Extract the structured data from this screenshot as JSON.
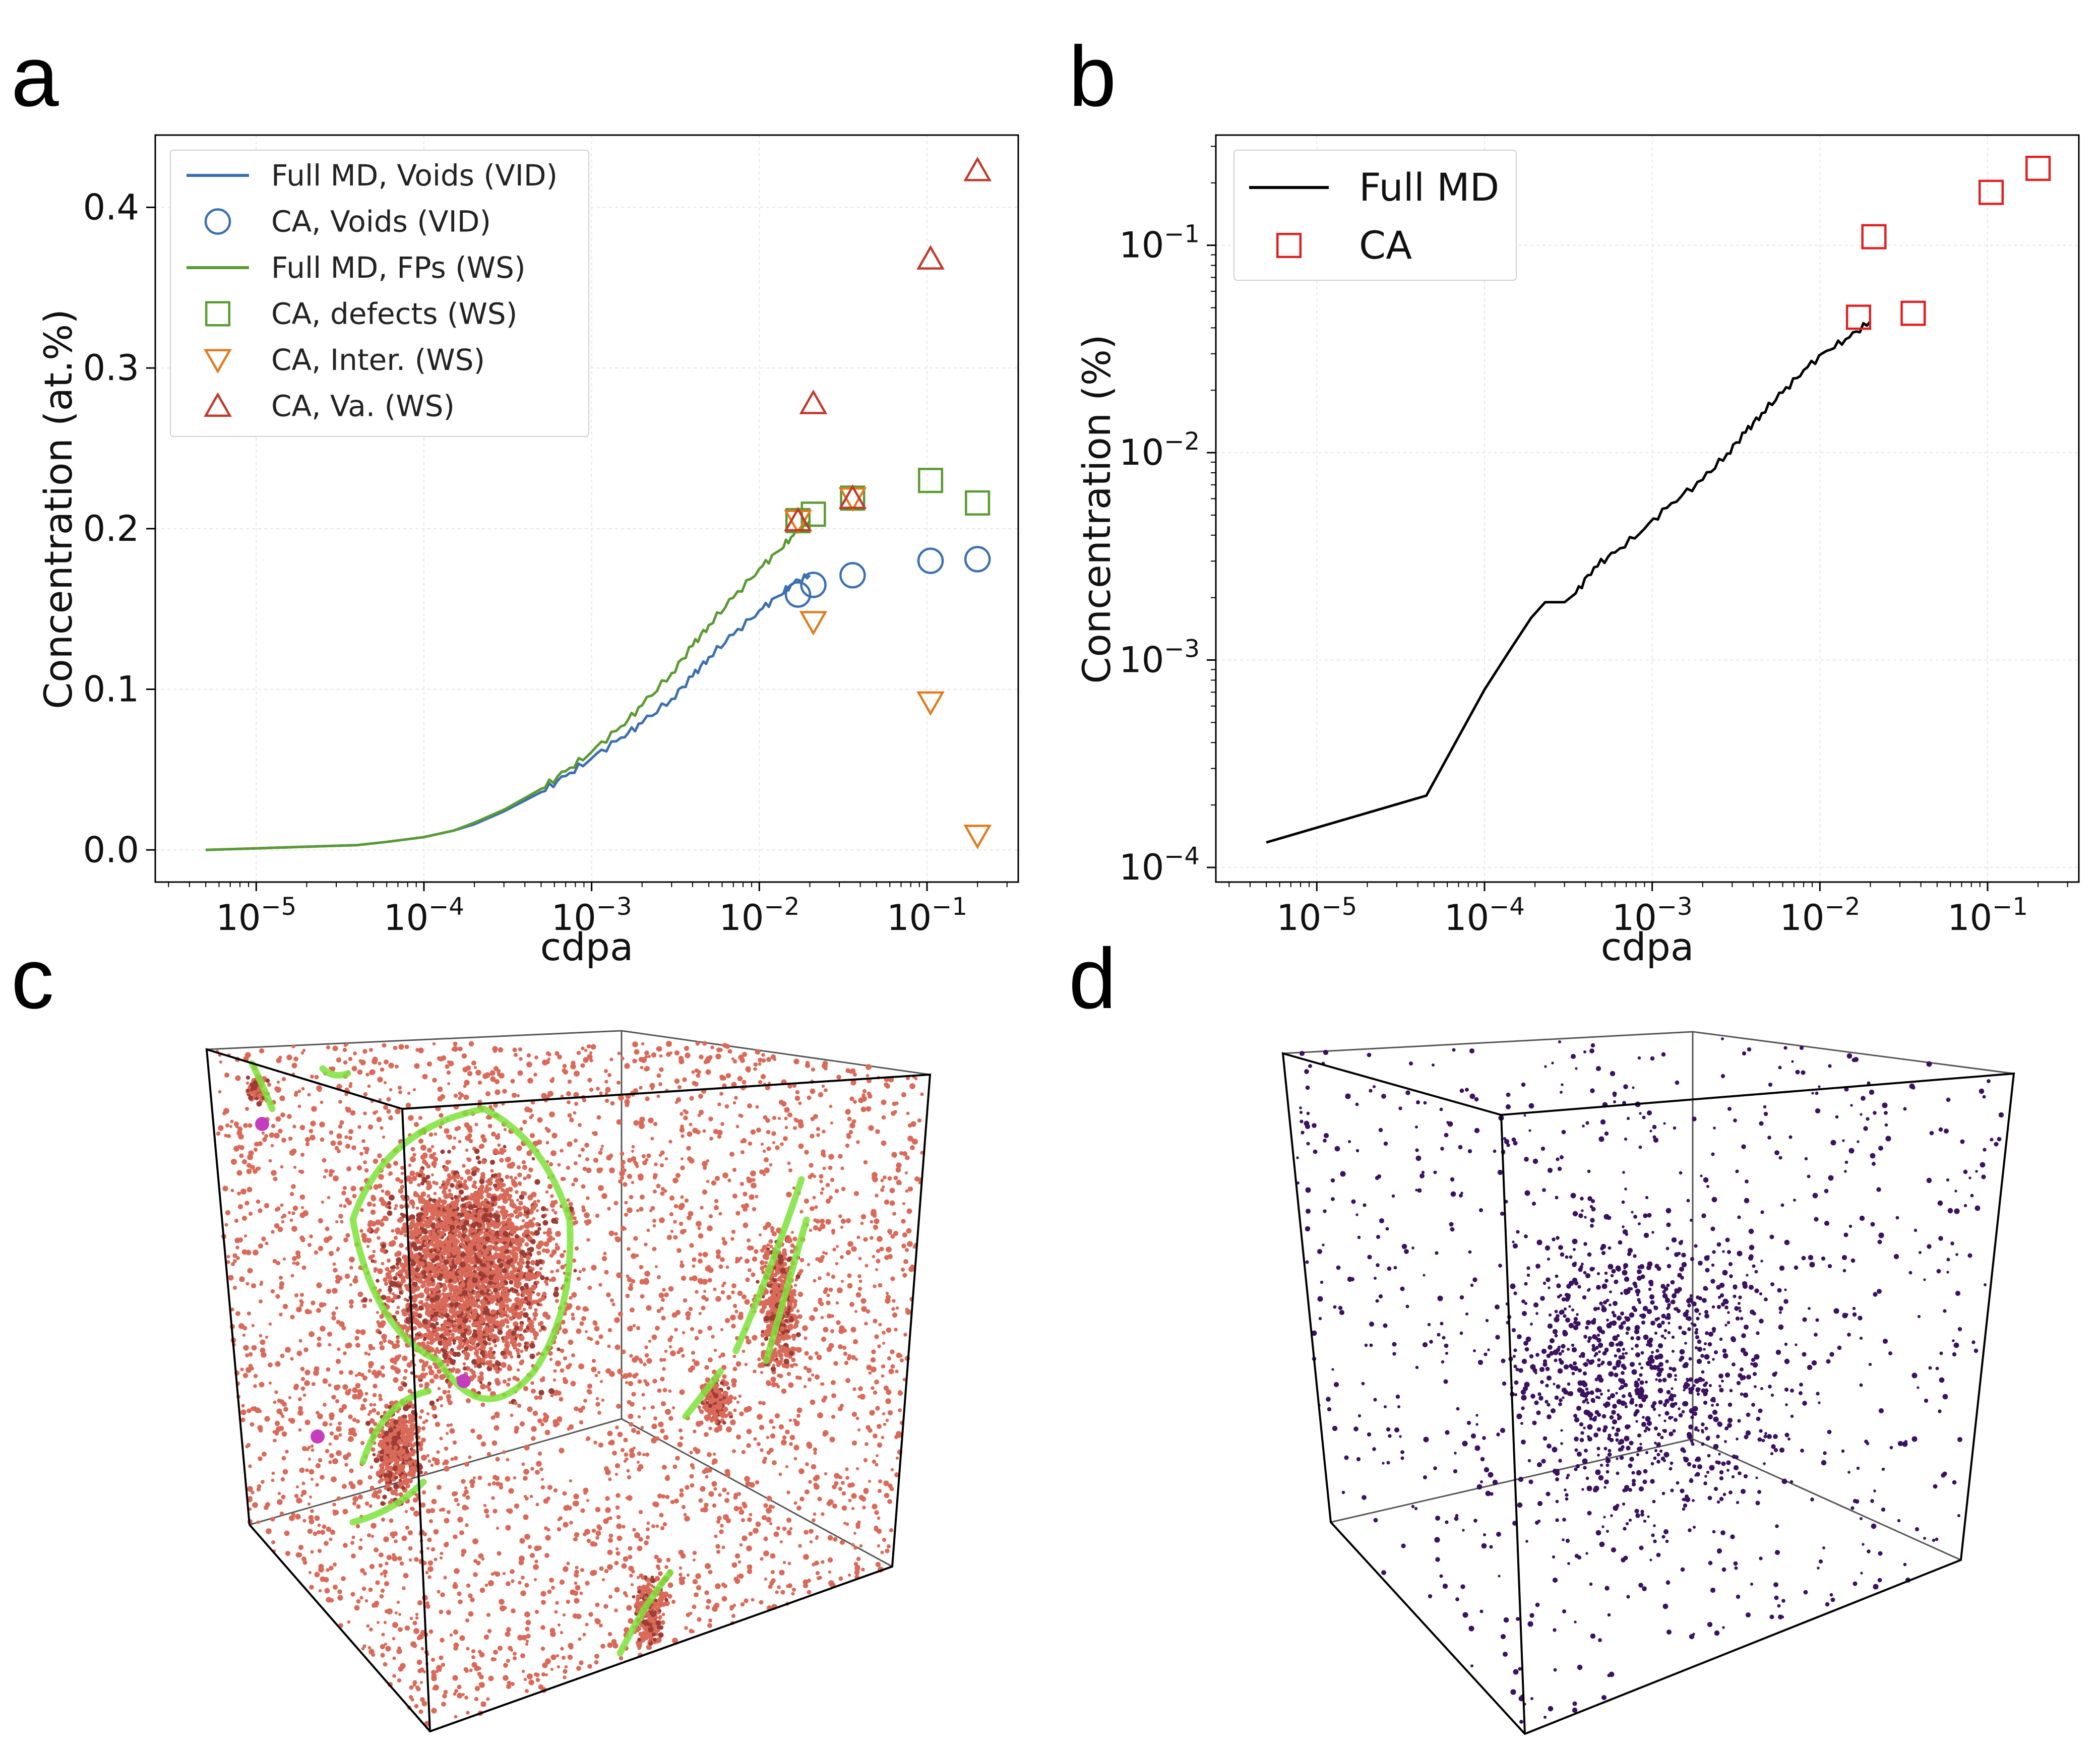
{
  "panels": {
    "a": "a",
    "b": "b",
    "c": "c",
    "d": "d"
  },
  "colors": {
    "blue": "#3a6fb0",
    "green": "#5a9a32",
    "orange": "#e07b1f",
    "red": "#c0392b",
    "black": "#000000",
    "ca_red": "#e02020",
    "grid": "#e6e6e6",
    "cluster_red": "#d96a59",
    "cluster_outline": "#7ee23a",
    "cluster_magenta": "#c43dbf",
    "void_purple": "#3b1160"
  },
  "chart_data": [
    {
      "id": "a",
      "type": "line+scatter",
      "xscale": "log",
      "xlim": [
        2.5e-06,
        0.35
      ],
      "ylim": [
        -0.02,
        0.445
      ],
      "xlabel": "cdpa",
      "ylabel": "Concentration (at.%)",
      "xticks": [
        {
          "value": 1e-05,
          "base": "10",
          "exp": "−5"
        },
        {
          "value": 0.0001,
          "base": "10",
          "exp": "−4"
        },
        {
          "value": 0.001,
          "base": "10",
          "exp": "−3"
        },
        {
          "value": 0.01,
          "base": "10",
          "exp": "−2"
        },
        {
          "value": 0.1,
          "base": "10",
          "exp": "−1"
        }
      ],
      "yticks": [
        {
          "value": 0.0,
          "label": "0.0"
        },
        {
          "value": 0.1,
          "label": "0.1"
        },
        {
          "value": 0.2,
          "label": "0.2"
        },
        {
          "value": 0.3,
          "label": "0.3"
        },
        {
          "value": 0.4,
          "label": "0.4"
        }
      ],
      "legend_position": "upper-left",
      "series": [
        {
          "name": "Full MD, Voids (VID)",
          "kind": "line",
          "color": "blue",
          "x": [
            5e-06,
            1e-05,
            2e-05,
            4e-05,
            6e-05,
            0.0001,
            0.00015,
            0.0002,
            0.0003,
            0.0005,
            0.0007,
            0.001,
            0.0015,
            0.002,
            0.003,
            0.004,
            0.005,
            0.007,
            0.01,
            0.013,
            0.016,
            0.02
          ],
          "y": [
            0.0,
            0.001,
            0.002,
            0.003,
            0.005,
            0.008,
            0.012,
            0.016,
            0.024,
            0.036,
            0.046,
            0.057,
            0.07,
            0.079,
            0.094,
            0.108,
            0.12,
            0.134,
            0.149,
            0.158,
            0.166,
            0.171
          ]
        },
        {
          "name": "CA, Voids (VID)",
          "kind": "marker",
          "marker": "circle",
          "color": "blue",
          "x": [
            0.017,
            0.021,
            0.036,
            0.105,
            0.2
          ],
          "y": [
            0.159,
            0.165,
            0.171,
            0.18,
            0.181
          ]
        },
        {
          "name": "Full MD, FPs (WS)",
          "kind": "line",
          "color": "green",
          "x": [
            5e-06,
            1e-05,
            2e-05,
            4e-05,
            6e-05,
            0.0001,
            0.00015,
            0.0002,
            0.0003,
            0.0005,
            0.0007,
            0.001,
            0.0015,
            0.002,
            0.003,
            0.004,
            0.005,
            0.007,
            0.01,
            0.013,
            0.016,
            0.02
          ],
          "y": [
            0.0,
            0.001,
            0.002,
            0.003,
            0.005,
            0.008,
            0.012,
            0.017,
            0.025,
            0.038,
            0.049,
            0.061,
            0.077,
            0.09,
            0.11,
            0.127,
            0.14,
            0.157,
            0.175,
            0.186,
            0.196,
            0.205
          ]
        },
        {
          "name": "CA, defects (WS)",
          "kind": "marker",
          "marker": "square",
          "color": "green",
          "x": [
            0.017,
            0.021,
            0.036,
            0.105,
            0.2
          ],
          "y": [
            0.205,
            0.209,
            0.219,
            0.23,
            0.216
          ]
        },
        {
          "name": "CA, Inter. (WS)",
          "kind": "marker",
          "marker": "triangle-down",
          "color": "orange",
          "x": [
            0.017,
            0.021,
            0.036,
            0.105,
            0.2
          ],
          "y": [
            0.205,
            0.142,
            0.219,
            0.092,
            0.009
          ]
        },
        {
          "name": "CA, Va. (WS)",
          "kind": "marker",
          "marker": "triangle-up",
          "color": "red",
          "x": [
            0.017,
            0.021,
            0.036,
            0.105,
            0.2
          ],
          "y": [
            0.205,
            0.278,
            0.219,
            0.368,
            0.423
          ]
        }
      ]
    },
    {
      "id": "b",
      "type": "line+scatter",
      "xscale": "log",
      "yscale": "log",
      "xlim": [
        2.5e-06,
        0.35
      ],
      "ylim": [
        8.5e-05,
        0.34
      ],
      "xlabel": "cdpa",
      "ylabel": "Concentration (%)",
      "xticks": [
        {
          "value": 1e-05,
          "base": "10",
          "exp": "−5"
        },
        {
          "value": 0.0001,
          "base": "10",
          "exp": "−4"
        },
        {
          "value": 0.001,
          "base": "10",
          "exp": "−3"
        },
        {
          "value": 0.01,
          "base": "10",
          "exp": "−2"
        },
        {
          "value": 0.1,
          "base": "10",
          "exp": "−1"
        }
      ],
      "yticks": [
        {
          "value": 0.0001,
          "base": "10",
          "exp": "−4"
        },
        {
          "value": 0.001,
          "base": "10",
          "exp": "−3"
        },
        {
          "value": 0.01,
          "base": "10",
          "exp": "−2"
        },
        {
          "value": 0.1,
          "base": "10",
          "exp": "−1"
        }
      ],
      "legend_position": "upper-left",
      "series": [
        {
          "name": "Full MD",
          "kind": "line",
          "color": "black",
          "x": [
            5e-06,
            4.5e-05,
            0.0001,
            0.00014,
            0.00019,
            0.00023,
            0.00026,
            0.0003,
            0.00035,
            0.00045,
            0.0006,
            0.0009,
            0.0013,
            0.002,
            0.0028,
            0.0036,
            0.0045,
            0.006,
            0.008,
            0.011,
            0.015,
            0.02
          ],
          "y": [
            0.000132,
            0.000222,
            0.00072,
            0.0011,
            0.0016,
            0.0019,
            0.0019,
            0.0019,
            0.0021,
            0.0028,
            0.0033,
            0.0043,
            0.0057,
            0.0074,
            0.0099,
            0.0125,
            0.0155,
            0.0195,
            0.025,
            0.031,
            0.036,
            0.043
          ]
        },
        {
          "name": "CA",
          "kind": "marker",
          "marker": "square",
          "color": "ca_red",
          "x": [
            0.017,
            0.021,
            0.036,
            0.105,
            0.2
          ],
          "y": [
            0.045,
            0.11,
            0.047,
            0.18,
            0.235
          ]
        }
      ]
    }
  ]
}
